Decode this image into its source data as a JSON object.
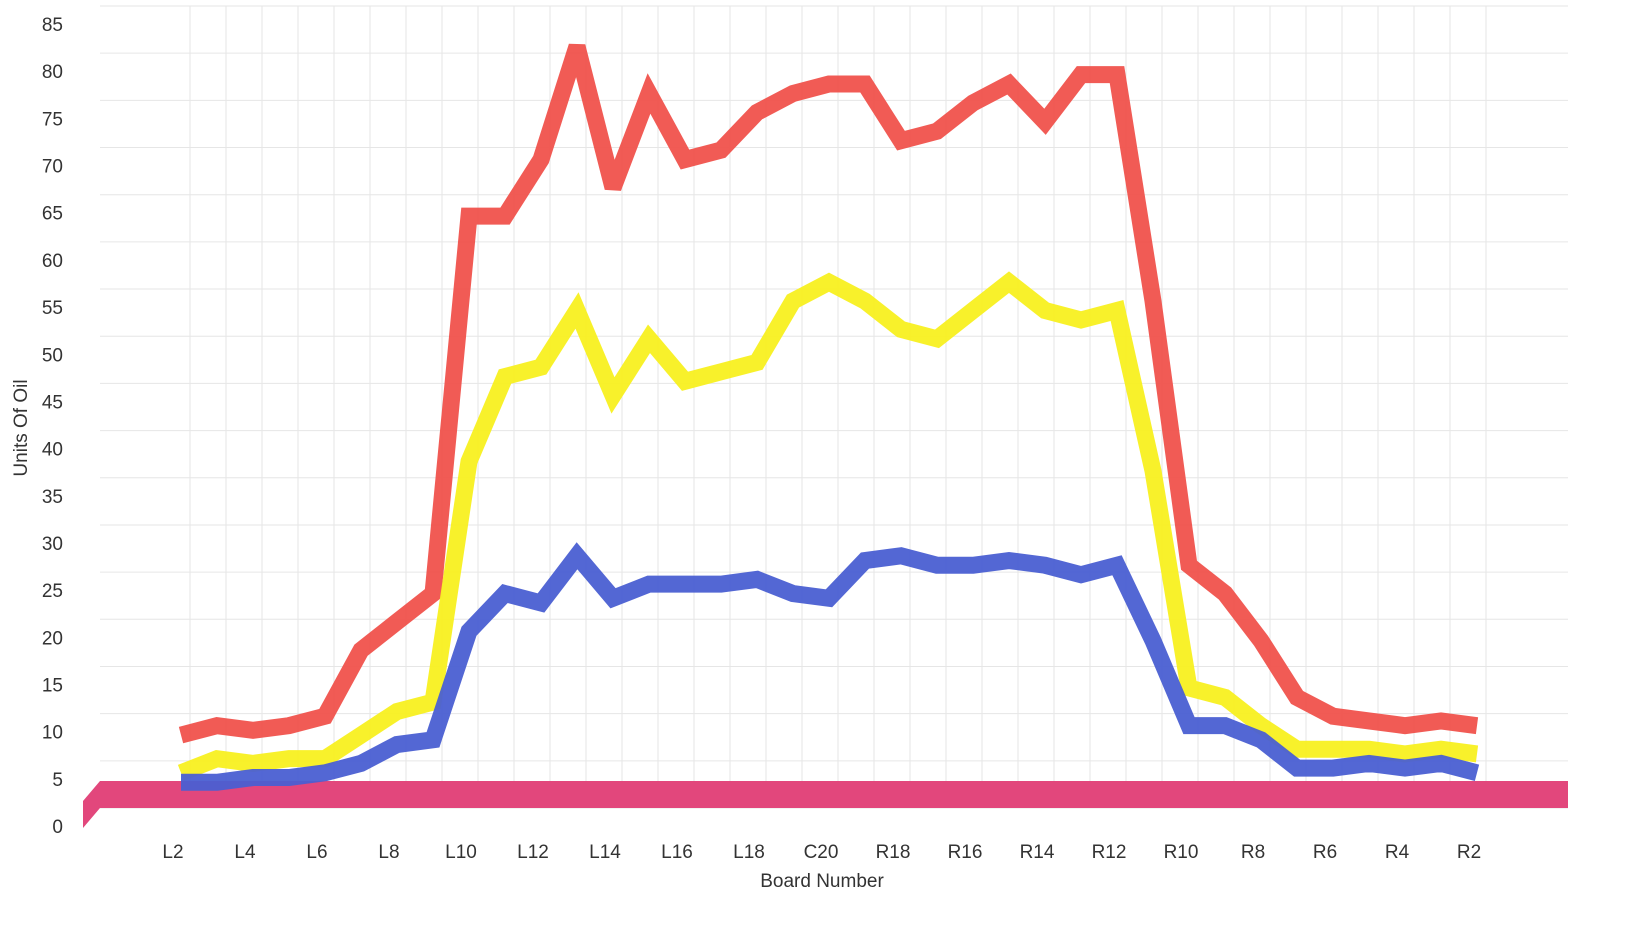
{
  "chart_data": {
    "type": "line",
    "x_label": "Board Number",
    "y_label": "Units Of Oil",
    "categories": [
      "L2",
      null,
      "L4",
      null,
      "L6",
      null,
      "L8",
      null,
      "L10",
      null,
      "L12",
      null,
      "L14",
      null,
      "L16",
      null,
      "L18",
      null,
      "C20",
      null,
      "R18",
      null,
      "R16",
      null,
      "R14",
      null,
      "R12",
      null,
      "R10",
      null,
      "R8",
      null,
      "R6",
      null,
      "R4",
      null,
      "R2"
    ],
    "series": [
      {
        "color": "#f0524c",
        "values": [
          9,
          10,
          9.5,
          10,
          11,
          18,
          21,
          24,
          64,
          64,
          70,
          82,
          67,
          77,
          70,
          71,
          75,
          77,
          78,
          78,
          72,
          73,
          76,
          78,
          74,
          79,
          79,
          55,
          27,
          24,
          19,
          13,
          11,
          10.5,
          10,
          10.5,
          10
        ]
      },
      {
        "color": "#f8f020",
        "values": [
          5,
          6.5,
          6,
          6.5,
          6.5,
          9,
          11.5,
          12.5,
          38,
          47,
          48,
          54,
          45,
          51,
          46.5,
          47.5,
          48.5,
          55,
          57,
          55,
          52,
          51,
          54,
          57,
          54,
          53,
          54,
          37,
          14,
          13,
          10,
          7.5,
          7.5,
          7.5,
          7,
          7.5,
          7
        ]
      },
      {
        "color": "#4a5fd2",
        "values": [
          4,
          4,
          4.5,
          4.5,
          5,
          6,
          8,
          8.5,
          20,
          24,
          23,
          28,
          23.5,
          25,
          25,
          25,
          25.5,
          24,
          23.5,
          27.5,
          28,
          27,
          27,
          27.5,
          27,
          26,
          27,
          19,
          10,
          10,
          8.5,
          5.5,
          5.5,
          6,
          5.5,
          6,
          5
        ]
      }
    ],
    "ylim": [
      0,
      85
    ],
    "yticks": [
      0,
      5,
      10,
      15,
      20,
      25,
      30,
      35,
      40,
      45,
      50,
      55,
      60,
      65,
      70,
      75,
      80,
      85
    ],
    "grid": true
  }
}
